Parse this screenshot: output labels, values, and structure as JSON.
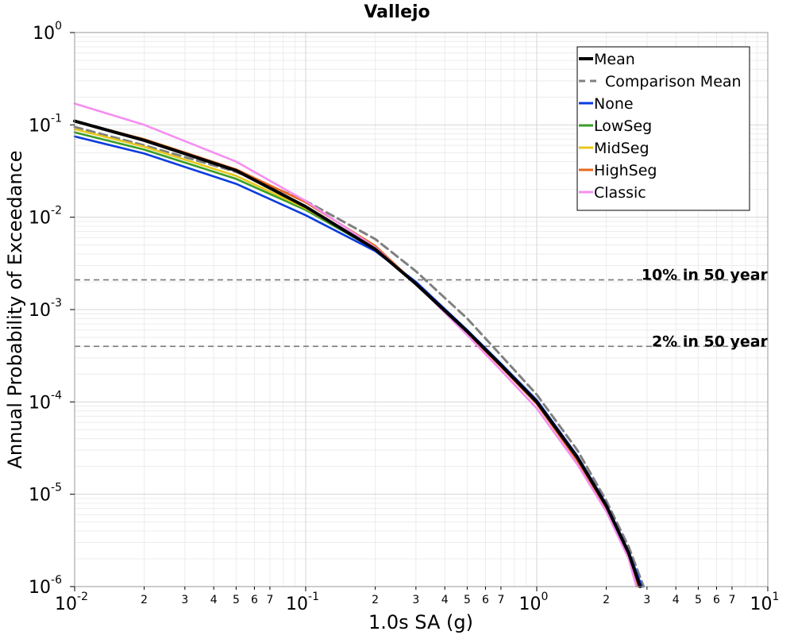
{
  "chart_data": {
    "type": "line",
    "title": "Vallejo",
    "xlabel": "1.0s SA (g)",
    "ylabel": "Annual Probability of Exceedance",
    "xscale": "log",
    "yscale": "log",
    "xlim": [
      0.01,
      10
    ],
    "ylim": [
      1e-06,
      1
    ],
    "grid": true,
    "legend_position": "top-right",
    "x_major_ticks": [
      {
        "value": 0.01,
        "base": "10",
        "exp": "-2"
      },
      {
        "value": 0.1,
        "base": "10",
        "exp": "-1"
      },
      {
        "value": 1,
        "base": "10",
        "exp": "0"
      },
      {
        "value": 10,
        "base": "10",
        "exp": "1"
      }
    ],
    "x_minor_ticks": [
      {
        "value": 0.02,
        "label": "2"
      },
      {
        "value": 0.03,
        "label": "3"
      },
      {
        "value": 0.04,
        "label": "4"
      },
      {
        "value": 0.05,
        "label": "5"
      },
      {
        "value": 0.06,
        "label": "6"
      },
      {
        "value": 0.07,
        "label": "7"
      },
      {
        "value": 0.2,
        "label": "2"
      },
      {
        "value": 0.3,
        "label": "3"
      },
      {
        "value": 0.4,
        "label": "4"
      },
      {
        "value": 0.5,
        "label": "5"
      },
      {
        "value": 0.6,
        "label": "6"
      },
      {
        "value": 0.7,
        "label": "7"
      },
      {
        "value": 2,
        "label": "2"
      },
      {
        "value": 3,
        "label": "3"
      },
      {
        "value": 4,
        "label": "4"
      },
      {
        "value": 5,
        "label": "5"
      },
      {
        "value": 6,
        "label": "6"
      },
      {
        "value": 7,
        "label": "7"
      }
    ],
    "y_major_ticks": [
      {
        "value": 1,
        "base": "10",
        "exp": "0"
      },
      {
        "value": 0.1,
        "base": "10",
        "exp": "-1"
      },
      {
        "value": 0.01,
        "base": "10",
        "exp": "-2"
      },
      {
        "value": 0.001,
        "base": "10",
        "exp": "-3"
      },
      {
        "value": 0.0001,
        "base": "10",
        "exp": "-4"
      },
      {
        "value": 1e-05,
        "base": "10",
        "exp": "-5"
      },
      {
        "value": 1e-06,
        "base": "10",
        "exp": "-6"
      }
    ],
    "reference_lines": [
      {
        "label": "10% in 50 year",
        "y": 0.0021
      },
      {
        "label": "2% in 50 year",
        "y": 0.0004
      }
    ],
    "series": [
      {
        "name": "Mean",
        "color": "#000000",
        "style": "solid",
        "weight": "heavy",
        "x": [
          0.01,
          0.02,
          0.05,
          0.1,
          0.2,
          0.3,
          0.5,
          0.7,
          1.0,
          1.5,
          2.0,
          2.5,
          2.8
        ],
        "y": [
          0.11,
          0.068,
          0.032,
          0.013,
          0.0045,
          0.0019,
          0.00058,
          0.00025,
          0.0001,
          2.5e-05,
          7.5e-06,
          2.3e-06,
          1e-06
        ]
      },
      {
        "name": "Comparison Mean",
        "color": "#808080",
        "style": "dashed",
        "weight": "normal",
        "x": [
          0.01,
          0.02,
          0.05,
          0.1,
          0.2,
          0.3,
          0.5,
          0.7,
          1.0,
          1.5,
          2.0,
          2.5,
          2.9
        ],
        "y": [
          0.095,
          0.06,
          0.031,
          0.015,
          0.0058,
          0.0026,
          0.0008,
          0.00032,
          0.00012,
          3e-05,
          8.5e-06,
          2.7e-06,
          1e-06
        ]
      },
      {
        "name": "None",
        "color": "#0a3be0",
        "style": "solid",
        "weight": "normal",
        "x": [
          0.01,
          0.02,
          0.05,
          0.1,
          0.2,
          0.3,
          0.5,
          0.7,
          1.0,
          1.5,
          2.0,
          2.5,
          2.85
        ],
        "y": [
          0.075,
          0.049,
          0.023,
          0.0105,
          0.0043,
          0.002,
          0.0006,
          0.00026,
          0.000105,
          2.6e-05,
          7.8e-06,
          2.4e-06,
          1e-06
        ]
      },
      {
        "name": "LowSeg",
        "color": "#3a9e28",
        "style": "solid",
        "weight": "normal",
        "x": [
          0.01,
          0.02,
          0.05,
          0.1,
          0.2,
          0.3,
          0.5,
          0.7,
          1.0,
          1.5,
          2.0,
          2.5,
          2.78
        ],
        "y": [
          0.083,
          0.054,
          0.026,
          0.012,
          0.0045,
          0.0019,
          0.00058,
          0.00025,
          0.0001,
          2.5e-05,
          7.4e-06,
          2.2e-06,
          1e-06
        ]
      },
      {
        "name": "MidSeg",
        "color": "#e8c81a",
        "style": "solid",
        "weight": "normal",
        "x": [
          0.01,
          0.02,
          0.05,
          0.1,
          0.2,
          0.3,
          0.5,
          0.7,
          1.0,
          1.5,
          2.0,
          2.5,
          2.78
        ],
        "y": [
          0.09,
          0.058,
          0.028,
          0.0125,
          0.0046,
          0.0019,
          0.00058,
          0.00025,
          0.0001,
          2.5e-05,
          7.4e-06,
          2.2e-06,
          1e-06
        ]
      },
      {
        "name": "HighSeg",
        "color": "#e8681a",
        "style": "solid",
        "weight": "normal",
        "x": [
          0.01,
          0.02,
          0.05,
          0.1,
          0.2,
          0.3,
          0.5,
          0.7,
          1.0,
          1.5,
          2.0,
          2.5,
          2.75
        ],
        "y": [
          0.11,
          0.07,
          0.033,
          0.0145,
          0.0049,
          0.0019,
          0.00056,
          0.00024,
          9.5e-05,
          2.3e-05,
          7e-06,
          2.1e-06,
          1e-06
        ]
      },
      {
        "name": "Classic",
        "color": "#f58ef0",
        "style": "solid",
        "weight": "normal",
        "x": [
          0.01,
          0.02,
          0.05,
          0.1,
          0.2,
          0.3,
          0.5,
          0.7,
          1.0,
          1.5,
          2.0,
          2.5,
          2.7
        ],
        "y": [
          0.17,
          0.1,
          0.04,
          0.015,
          0.0047,
          0.0019,
          0.00053,
          0.00022,
          8.5e-05,
          2.1e-05,
          6.5e-06,
          2e-06,
          1e-06
        ]
      }
    ]
  }
}
